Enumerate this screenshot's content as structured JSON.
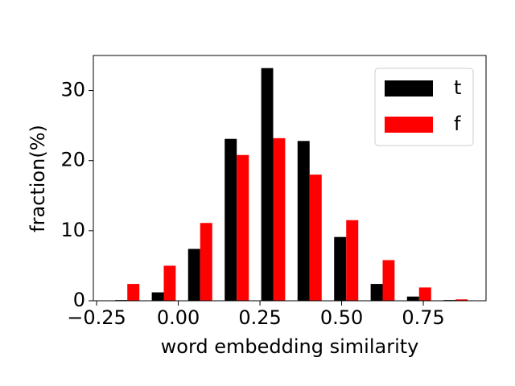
{
  "chart_data": {
    "type": "histogram",
    "xlabel": "word embedding similarity",
    "ylabel": "fraction(%)",
    "bins": [
      -0.212,
      -0.1,
      0.011,
      0.123,
      0.235,
      0.346,
      0.458,
      0.57,
      0.681,
      0.793,
      0.905
    ],
    "series": [
      {
        "name": "t",
        "color": "#000000",
        "values": [
          0.1,
          1.2,
          7.4,
          23.1,
          33.2,
          22.8,
          9.1,
          2.4,
          0.6,
          0.1
        ]
      },
      {
        "name": "f",
        "color": "#ff0000",
        "values": [
          2.4,
          5.0,
          11.1,
          20.8,
          23.2,
          18.0,
          11.5,
          5.8,
          1.9,
          0.2
        ]
      }
    ],
    "xlim": [
      -0.26,
      0.942
    ],
    "ylim": [
      0,
      35
    ],
    "xticks": [
      {
        "value": -0.25,
        "label": "−0.25"
      },
      {
        "value": 0,
        "label": "0.00"
      },
      0.25,
      {
        "value": 0.5,
        "label": "0.50"
      },
      0.75
    ],
    "yticks": [
      0,
      10,
      20,
      30
    ],
    "legend": "upper right"
  }
}
